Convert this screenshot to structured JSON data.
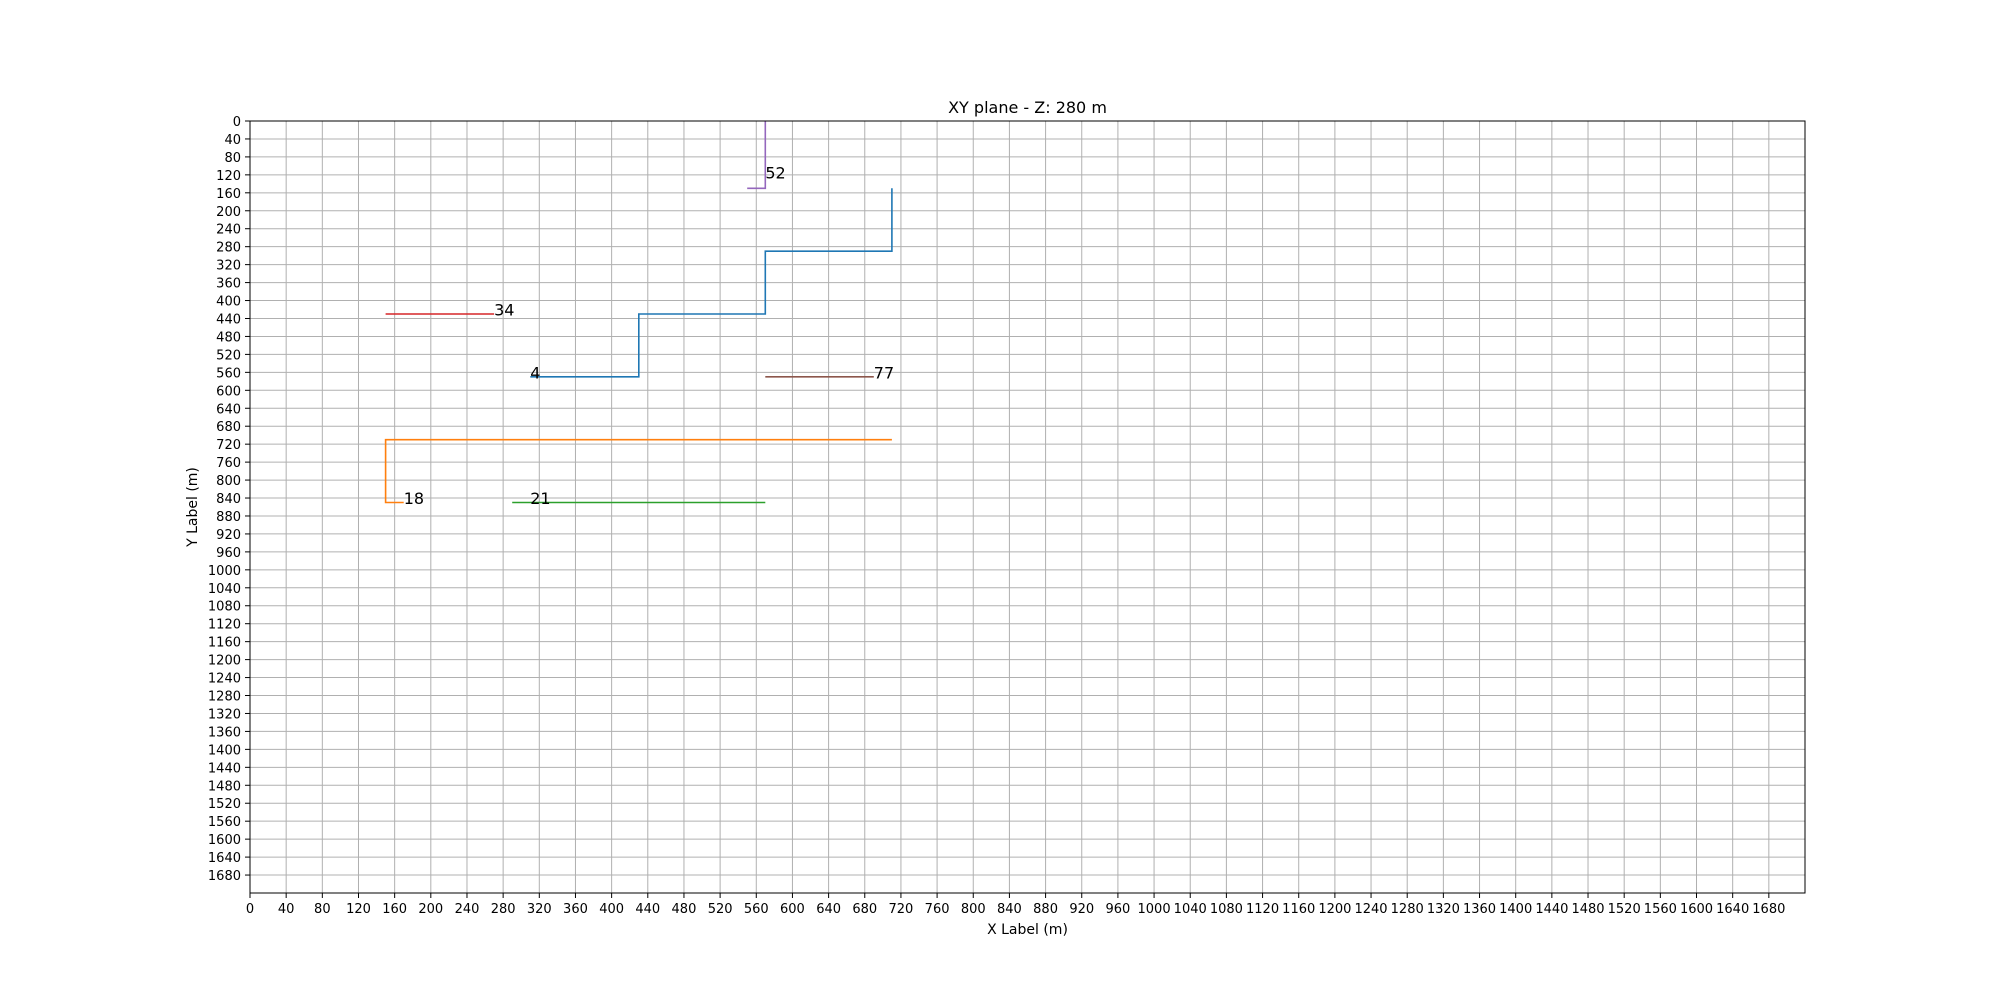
{
  "chart_data": {
    "type": "line",
    "title": "XY plane - Z: 280 m",
    "xlabel": "X Label (m)",
    "ylabel": "Y Label (m)",
    "xlim": [
      0,
      1720
    ],
    "ylim": [
      1720,
      0
    ],
    "y_inverted": true,
    "grid": true,
    "xticks": [
      0,
      40,
      80,
      120,
      160,
      200,
      240,
      280,
      320,
      360,
      400,
      440,
      480,
      520,
      560,
      600,
      640,
      680,
      720,
      760,
      800,
      840,
      880,
      920,
      960,
      1000,
      1040,
      1080,
      1120,
      1160,
      1200,
      1240,
      1280,
      1320,
      1360,
      1400,
      1440,
      1480,
      1520,
      1560,
      1600,
      1640,
      1680
    ],
    "yticks": [
      0,
      40,
      80,
      120,
      160,
      200,
      240,
      280,
      320,
      360,
      400,
      440,
      480,
      520,
      560,
      600,
      640,
      680,
      720,
      760,
      800,
      840,
      880,
      920,
      960,
      1000,
      1040,
      1080,
      1120,
      1160,
      1200,
      1240,
      1280,
      1320,
      1360,
      1400,
      1440,
      1480,
      1520,
      1560,
      1600,
      1640,
      1680
    ],
    "series": [
      {
        "label": "4",
        "color": "#1f77b4",
        "points": [
          [
            310,
            570
          ],
          [
            430,
            570
          ],
          [
            430,
            430
          ],
          [
            570,
            430
          ],
          [
            570,
            290
          ],
          [
            710,
            290
          ],
          [
            710,
            150
          ]
        ],
        "label_at": [
          310,
          560
        ]
      },
      {
        "label": "18",
        "color": "#ff7f0e",
        "points": [
          [
            170,
            850
          ],
          [
            150,
            850
          ],
          [
            150,
            710
          ],
          [
            710,
            710
          ]
        ],
        "label_at": [
          170,
          840
        ]
      },
      {
        "label": "21",
        "color": "#2ca02c",
        "points": [
          [
            290,
            850
          ],
          [
            570,
            850
          ]
        ],
        "label_at": [
          310,
          840
        ]
      },
      {
        "label": "34",
        "color": "#d62728",
        "points": [
          [
            150,
            430
          ],
          [
            270,
            430
          ]
        ],
        "label_at": [
          270,
          420
        ]
      },
      {
        "label": "52",
        "color": "#9467bd",
        "points": [
          [
            570,
            0
          ],
          [
            570,
            150
          ],
          [
            550,
            150
          ]
        ],
        "label_at": [
          570,
          115
        ]
      },
      {
        "label": "77",
        "color": "#8c564b",
        "points": [
          [
            570,
            570
          ],
          [
            690,
            570
          ]
        ],
        "label_at": [
          690,
          560
        ]
      }
    ]
  }
}
